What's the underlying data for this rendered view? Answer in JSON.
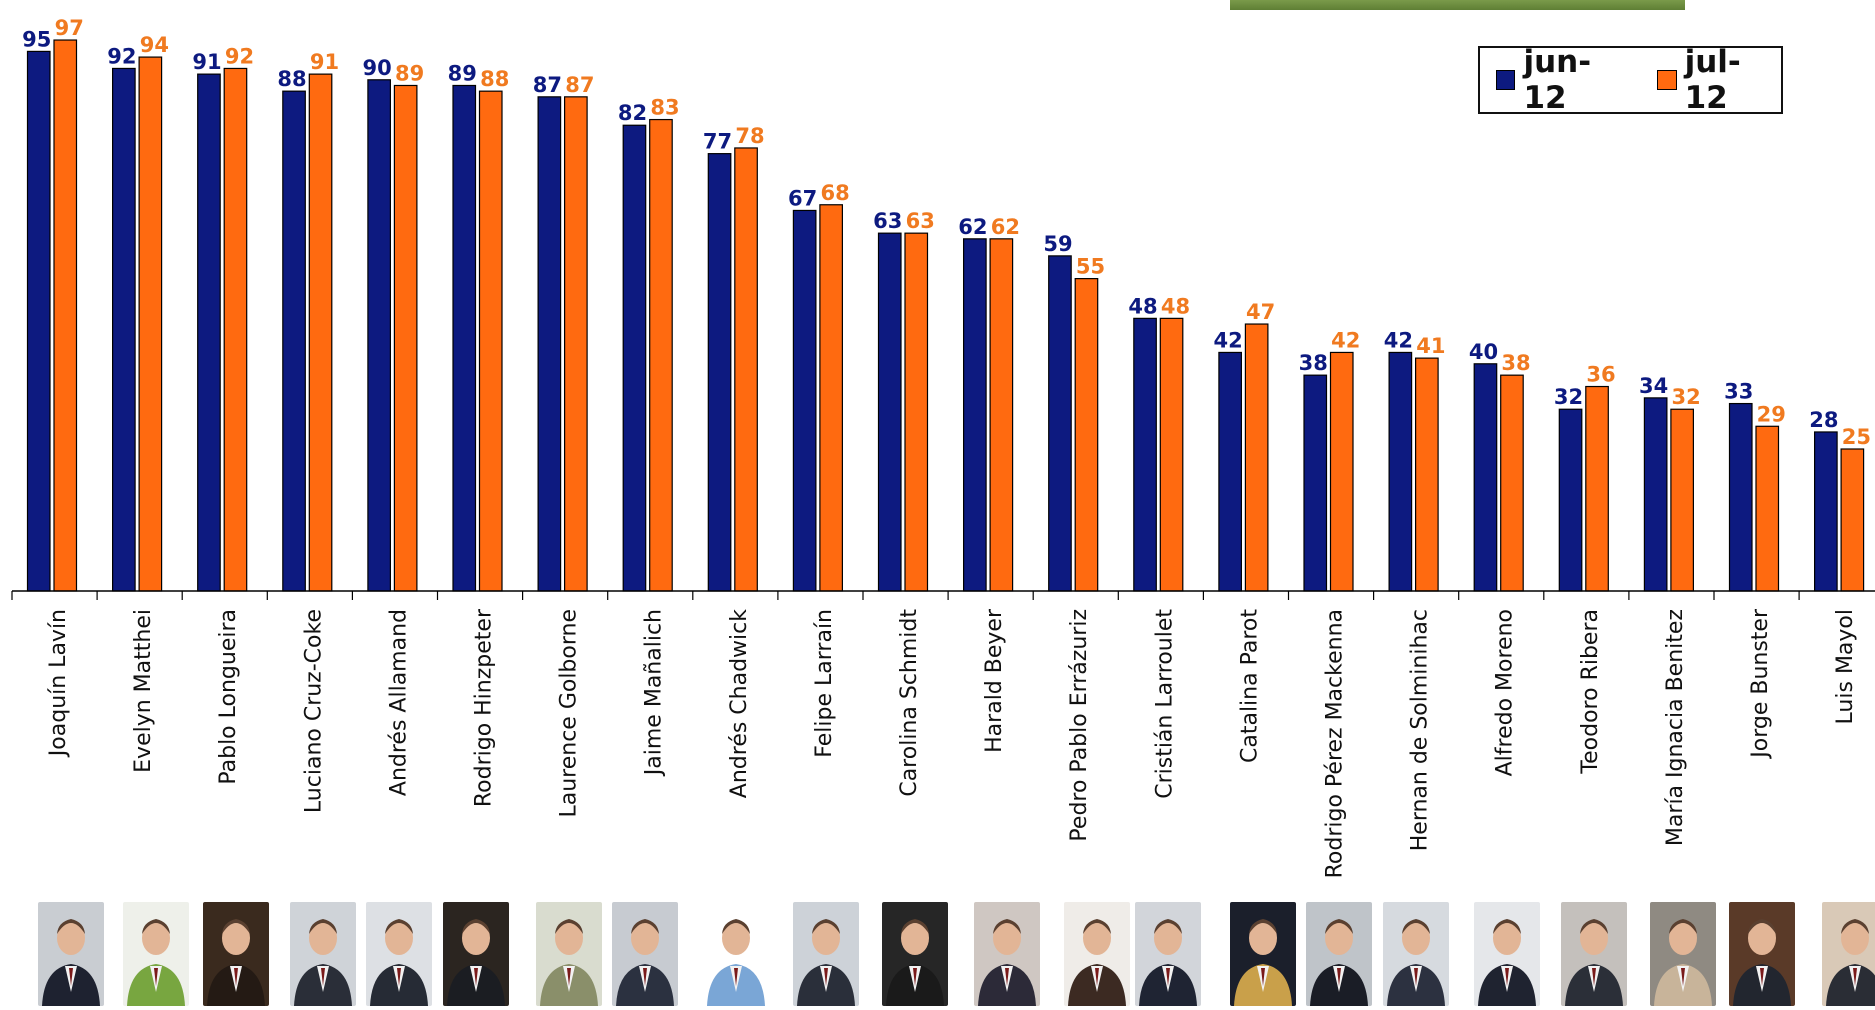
{
  "chart_data": {
    "type": "bar",
    "categories": [
      "Joaquín Lavín",
      "Evelyn Matthei",
      "Pablo Longueira",
      "Luciano Cruz-Coke",
      "Andrés Allamand",
      "Rodrigo Hinzpeter",
      "Laurence Golborne",
      "Jaime Mañalich",
      "Andrés Chadwick",
      "Felipe Larraín",
      "Carolina Schmidt",
      "Harald Beyer",
      "Pedro Pablo Errázuriz",
      "Cristián Larroulet",
      "Catalina Parot",
      "Rodrigo Pérez Mackenna",
      "Hernan de Solminihac",
      "Alfredo Moreno",
      "Teodoro Ribera",
      "María Ignacia Benitez",
      "Jorge Bunster",
      "Luis Mayol"
    ],
    "series": [
      {
        "name": "jun-12",
        "color": "#0d1a80",
        "label_color": "#0d1a80",
        "values": [
          95,
          92,
          91,
          88,
          90,
          89,
          87,
          82,
          77,
          67,
          63,
          62,
          59,
          48,
          42,
          38,
          42,
          40,
          32,
          34,
          33,
          28
        ]
      },
      {
        "name": "jul-12",
        "color": "#ff6a10",
        "label_color": "#f07a20",
        "values": [
          97,
          94,
          92,
          91,
          89,
          88,
          87,
          83,
          78,
          68,
          63,
          62,
          55,
          48,
          47,
          42,
          41,
          38,
          36,
          32,
          29,
          25
        ]
      }
    ],
    "ylim": [
      0,
      100
    ],
    "legend_position": "top-right",
    "grid": false,
    "title": "",
    "xlabel": "",
    "ylabel": ""
  },
  "legend": {
    "items": [
      {
        "label": "jun-12",
        "color": "#0d1a80"
      },
      {
        "label": "jul-12",
        "color": "#ff6a10"
      }
    ]
  },
  "photos": {
    "count": 22,
    "icon": "portrait-photo-icon",
    "bg_colors": [
      "#c9cdd2",
      "#eef0ea",
      "#3a2a1e",
      "#cfd3d8",
      "#dde0e4",
      "#2b2520",
      "#d9dccf",
      "#c7cbd1",
      "#ffffff",
      "#cdd2d8",
      "#262626",
      "#cfc7c2",
      "#efece8",
      "#d2d5da",
      "#1b1f2b",
      "#bfc4c9",
      "#d6dadf",
      "#e5e7ea",
      "#c4c0bc",
      "#8f8a82",
      "#5a3a28",
      "#d9c9b7"
    ],
    "suit_colors": [
      "#1e2230",
      "#78a640",
      "#241a14",
      "#2a2e38",
      "#262b35",
      "#1b1d22",
      "#8a8f6a",
      "#2b3140",
      "#7aa6d6",
      "#2a2f3a",
      "#1a1a1a",
      "#2c2a38",
      "#3c2a22",
      "#1f2433",
      "#c9a04a",
      "#1a1d26",
      "#2c3140",
      "#1f2330",
      "#2b2f38",
      "#c8b49a",
      "#22262f",
      "#2a2d35"
    ]
  }
}
